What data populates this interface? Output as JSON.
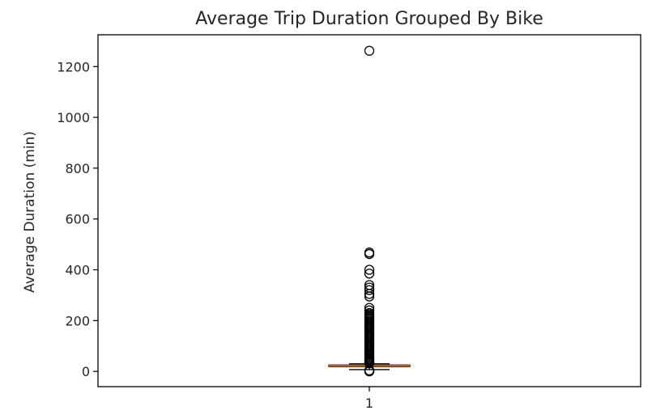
{
  "chart_data": {
    "type": "boxplot",
    "title": "Average Trip Duration Grouped By Bike",
    "xlabel": "",
    "ylabel": "Average Duration (min)",
    "ylim": [
      -60,
      1325
    ],
    "yticks": [
      0,
      200,
      400,
      600,
      800,
      1000,
      1200
    ],
    "categories": [
      "1"
    ],
    "grid": false,
    "box": {
      "whisker_low": 7,
      "q1": 19,
      "median": 22,
      "q3": 25,
      "whisker_high": 30
    },
    "outliers": [
      0,
      2,
      4,
      32,
      35,
      38,
      42,
      46,
      50,
      55,
      60,
      65,
      70,
      75,
      80,
      85,
      90,
      95,
      100,
      105,
      110,
      115,
      120,
      125,
      130,
      135,
      140,
      145,
      150,
      155,
      160,
      165,
      170,
      175,
      180,
      185,
      190,
      195,
      200,
      205,
      210,
      215,
      220,
      225,
      230,
      240,
      250,
      295,
      305,
      320,
      330,
      340,
      385,
      400,
      462,
      468,
      1262
    ],
    "colors": {
      "median": "#ff7f0e",
      "box": "#000000"
    }
  }
}
